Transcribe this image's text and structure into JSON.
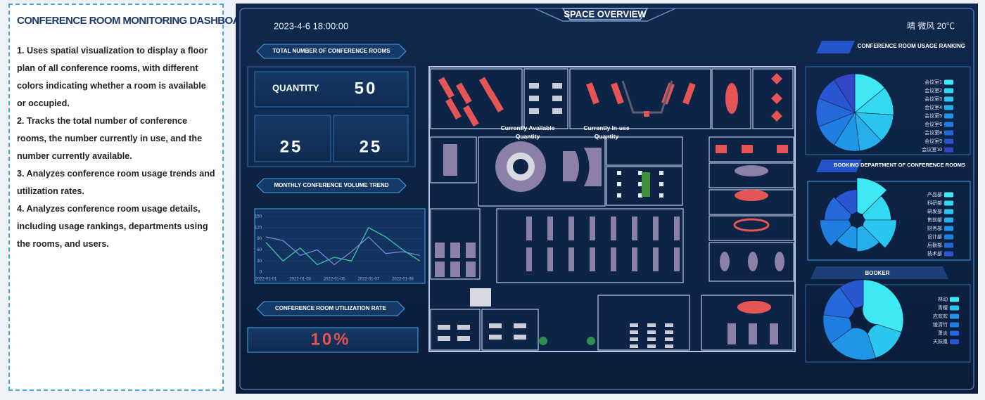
{
  "description": {
    "title": "CONFERENCE ROOM MONITORING DASHBOARD:",
    "items": [
      "1. Uses spatial visualization to display a floor plan of all conference rooms, with different colors indicating whether a room is available or occupied.",
      "2. Tracks the total number of conference rooms, the number currently in use, and the number currently available.",
      "3. Analyzes conference room usage trends and utilization rates.",
      "4. Analyzes conference room usage details, including usage rankings, departments using the rooms, and users."
    ]
  },
  "dashboard": {
    "title": "SPACE OVERVIEW",
    "datetime": "2023-4-6 18:00:00",
    "weather": "晴 微风 20℃"
  },
  "total_rooms": {
    "title": "TOTAL NUMBER OF CONFERENCE ROOMS",
    "quantity_label": "QUANTITY",
    "quantity": 50,
    "available_label": "Currently Available Quantity",
    "available": 25,
    "in_use_label": "Currently In-use Quantity",
    "in_use": 25
  },
  "utilization": {
    "title": "CONFERENCE ROOM UTILIZATION RATE",
    "rate": "10%"
  },
  "chart_data": [
    {
      "type": "line",
      "title": "MONTHLY CONFERENCE VOLUME TREND",
      "categories": [
        "2022-01-01",
        null,
        "2022-01-03",
        null,
        "2022-01-05",
        null,
        "2022-01-07",
        null,
        "2022-01-09",
        null
      ],
      "series": [
        {
          "color": "#7f86d6",
          "values": [
            95,
            85,
            45,
            60,
            20,
            55,
            95,
            50,
            55,
            45
          ]
        },
        {
          "color": "#3dc3a3",
          "values": [
            80,
            30,
            65,
            20,
            40,
            30,
            120,
            95,
            60,
            30
          ]
        }
      ],
      "ylim": [
        0,
        150
      ],
      "yticks": [
        0,
        30,
        60,
        90,
        120,
        150
      ],
      "grid": true
    },
    {
      "type": "pie",
      "title": "CONFERENCE ROOM USAGE RANKING",
      "categories": [
        "会议室1",
        "会议室2",
        "会议室3",
        "会议室4",
        "会议室5",
        "会议室6",
        "会议室8",
        "会议室9",
        "会议室10"
      ],
      "values": [
        14,
        12,
        12,
        10,
        11,
        10,
        12,
        10,
        9
      ],
      "colors": [
        "#3ee8f5",
        "#33d8f2",
        "#2bc6ef",
        "#25b0ec",
        "#2196e7",
        "#217ee1",
        "#2468da",
        "#2b56d2",
        "#3446c8"
      ]
    },
    {
      "type": "rose",
      "title": "BOOKING DEPARTMENT OF CONFERENCE ROOMS",
      "categories": [
        "产品部",
        "科研部",
        "研发部",
        "售前部",
        "财务部",
        "设计部",
        "后勤部",
        "技术部"
      ],
      "values": [
        60,
        45,
        55,
        40,
        35,
        50,
        42,
        38
      ],
      "colors": [
        "#3ee8f5",
        "#33d8f2",
        "#2bc6ef",
        "#25b0ec",
        "#2196e7",
        "#217ee1",
        "#2468da",
        "#2b56d2"
      ]
    },
    {
      "type": "donut",
      "title": "BOOKER",
      "categories": [
        "林动",
        "青檀",
        "应欢欢",
        "绫清竹",
        "萧炎",
        "天妖凰"
      ],
      "values": [
        30,
        15,
        20,
        12,
        13,
        10
      ],
      "colors": [
        "#3ee8f5",
        "#2bc6ef",
        "#2196e7",
        "#217ee1",
        "#2468da",
        "#2b56d2"
      ]
    }
  ]
}
